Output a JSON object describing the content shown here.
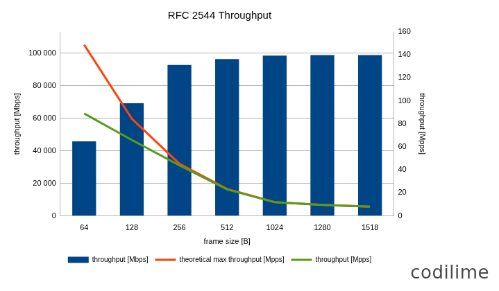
{
  "chart_data": {
    "type": "bar",
    "title": "RFC 2544 Throughput",
    "x_label": "frame size [B]",
    "y_label": "throughput [Mbps]",
    "y2_label": "throughput [Mpps]",
    "categories": [
      "64",
      "128",
      "256",
      "512",
      "1024",
      "1280",
      "1518"
    ],
    "series": [
      {
        "name": "throughput [Mbps]",
        "type": "bar",
        "color": "#004586",
        "values": [
          45800,
          69200,
          92700,
          96300,
          98400,
          98700,
          98700
        ]
      },
      {
        "name": "theoretical max throughput [Mpps]",
        "type": "line",
        "color": "#ff420e",
        "axis": "y2",
        "marker": "none",
        "values": [
          148.8,
          84.5,
          45.3,
          23.5,
          12.0,
          9.6,
          8.1
        ]
      },
      {
        "name": "throughput [Mpps]",
        "type": "line",
        "color": "#579d1c",
        "axis": "y2",
        "marker": "none",
        "values": [
          89,
          66,
          44,
          23,
          11.9,
          9.6,
          8.1
        ]
      }
    ],
    "ylim": [
      0,
      113000
    ],
    "yticks": [
      0,
      {
        "value": 20000,
        "label": "20 000"
      },
      {
        "value": 40000,
        "label": "40 000"
      },
      {
        "value": 60000,
        "label": "60 000"
      },
      {
        "value": 80000,
        "label": "80 000"
      },
      {
        "value": 100000,
        "label": "100 000"
      }
    ],
    "y2lim": [
      0,
      160
    ],
    "y2ticks": [
      0,
      20,
      40,
      60,
      80,
      100,
      120,
      140,
      160
    ],
    "grid": true,
    "legend": "bottom",
    "annotations": [
      "codilime"
    ]
  }
}
